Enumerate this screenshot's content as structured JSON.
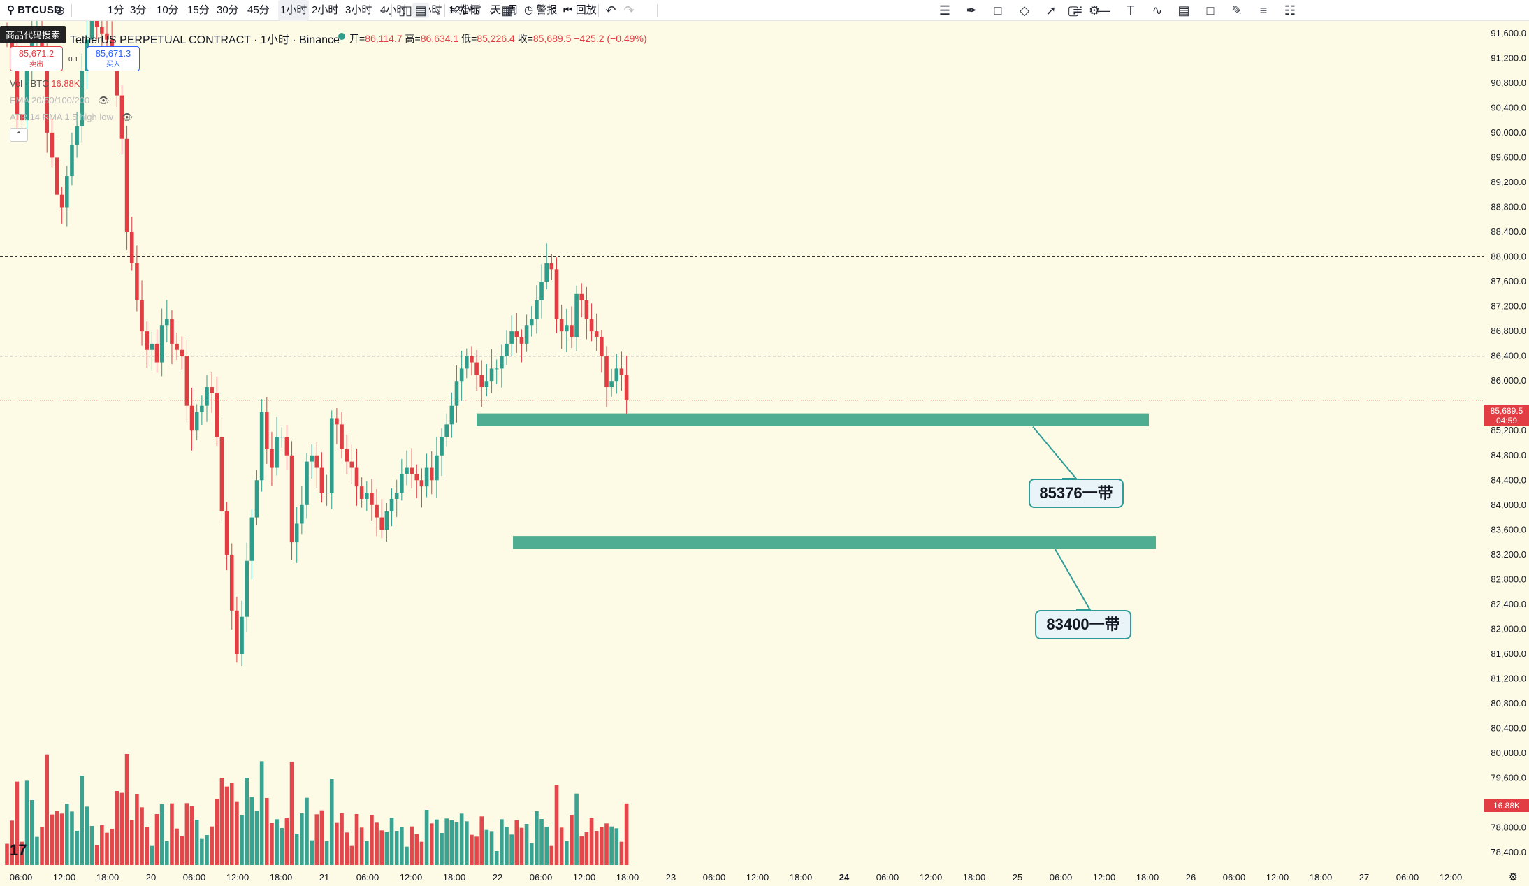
{
  "toolbar": {
    "symbol": "BTCUSD",
    "intervals": [
      "1分",
      "3分",
      "10分",
      "15分",
      "30分",
      "45分",
      "1小时",
      "2小时",
      "3小时",
      "4小时",
      "6小时",
      "12小时",
      "天",
      "周"
    ],
    "active_interval": "1小时",
    "indicators_label": "指标",
    "alert_label": "警报",
    "replay_label": "回放"
  },
  "search_tooltip": "商品代码搜索",
  "legend": {
    "title": "TetherUS PERPETUAL CONTRACT · 1小时 · Binance",
    "open_label": "开=",
    "open": "86,114.7",
    "high_label": "高=",
    "high": "86,634.1",
    "low_label": "低=",
    "low": "85,226.4",
    "close_label": "收=",
    "close": "85,689.5",
    "change": "−425.2 (−0.49%)"
  },
  "sell": {
    "price": "85,671.2",
    "label": "卖出"
  },
  "buy": {
    "price": "85,671.3",
    "label": "买入"
  },
  "spread": "0.1",
  "indicators": [
    {
      "name": "Vol · BTC",
      "value": "16.88K"
    },
    {
      "name": "EMA 20/50/100/200",
      "value": ""
    },
    {
      "name": "ATR 14 RMA 1.5 high low",
      "value": ""
    }
  ],
  "price_axis": [
    "91,600.0",
    "91,200.0",
    "90,800.0",
    "90,400.0",
    "90,000.0",
    "89,600.0",
    "89,200.0",
    "88,800.0",
    "88,400.0",
    "88,000.0",
    "87,600.0",
    "87,200.0",
    "86,800.0",
    "86,400.0",
    "86,000.0",
    "85,200.0",
    "84,800.0",
    "84,400.0",
    "84,000.0",
    "83,600.0",
    "83,200.0",
    "82,800.0",
    "82,400.0",
    "82,000.0",
    "81,600.0",
    "81,200.0",
    "80,800.0",
    "80,400.0",
    "80,000.0",
    "79,600.0",
    "79,200.0",
    "78,800.0",
    "78,400.0"
  ],
  "current_price_tag": {
    "price": "85,689.5",
    "countdown": "04:59"
  },
  "volume_tag": "16.88K",
  "time_axis": [
    "06:00",
    "12:00",
    "18:00",
    "20",
    "06:00",
    "12:00",
    "18:00",
    "21",
    "06:00",
    "12:00",
    "18:00",
    "22",
    "06:00",
    "12:00",
    "18:00",
    "23",
    "06:00",
    "12:00",
    "18:00",
    "24",
    "06:00",
    "12:00",
    "18:00",
    "25",
    "06:00",
    "12:00",
    "18:00",
    "26",
    "06:00",
    "12:00",
    "18:00",
    "27",
    "06:00",
    "12:00"
  ],
  "annotations": [
    {
      "label": "85376一带",
      "price": 85376
    },
    {
      "label": "83400一带",
      "price": 83400
    }
  ],
  "horizontal_lines": [
    88000,
    86400
  ],
  "colors": {
    "up": "#2e9d8c",
    "down": "#e23d43",
    "zone": "#4fae91",
    "background": "#fdfbe6"
  },
  "chart_data": {
    "type": "candlestick",
    "interval": "1小时",
    "ylim": [
      78200,
      91800
    ],
    "ohlc_close_series": [
      91500,
      91300,
      90300,
      90200,
      91000,
      91600,
      91700,
      91300,
      90000,
      89600,
      89000,
      88800,
      89300,
      89800,
      90100,
      91000,
      91500,
      91800,
      91700,
      91600,
      91500,
      91200,
      90600,
      89900,
      88400,
      87900,
      87300,
      86800,
      86500,
      86600,
      86300,
      86900,
      87000,
      86600,
      86500,
      86400,
      85600,
      85200,
      85500,
      85600,
      85900,
      85800,
      85100,
      83900,
      83200,
      82300,
      81600,
      82200,
      83100,
      83800,
      84400,
      85500,
      84900,
      84600,
      85100,
      85100,
      84800,
      83400,
      83700,
      84000,
      84700,
      84800,
      84600,
      84200,
      84200,
      85400,
      85300,
      84900,
      84700,
      84600,
      84300,
      84100,
      84200,
      84000,
      83800,
      83600,
      83900,
      84100,
      84200,
      84500,
      84600,
      84500,
      84400,
      84300,
      84600,
      84400,
      84800,
      85100,
      85300,
      85600,
      86000,
      86200,
      86400,
      86300,
      86100,
      85900,
      86000,
      86200,
      86200,
      86400,
      86600,
      86800,
      86700,
      86600,
      86900,
      87000,
      87300,
      87600,
      87900,
      87800,
      87000,
      86800,
      86900,
      86700,
      87400,
      87300,
      87000,
      86800,
      86700,
      86400,
      85900,
      86000,
      86200,
      86100,
      85690
    ],
    "annotation_levels": [
      85376,
      83400
    ]
  }
}
